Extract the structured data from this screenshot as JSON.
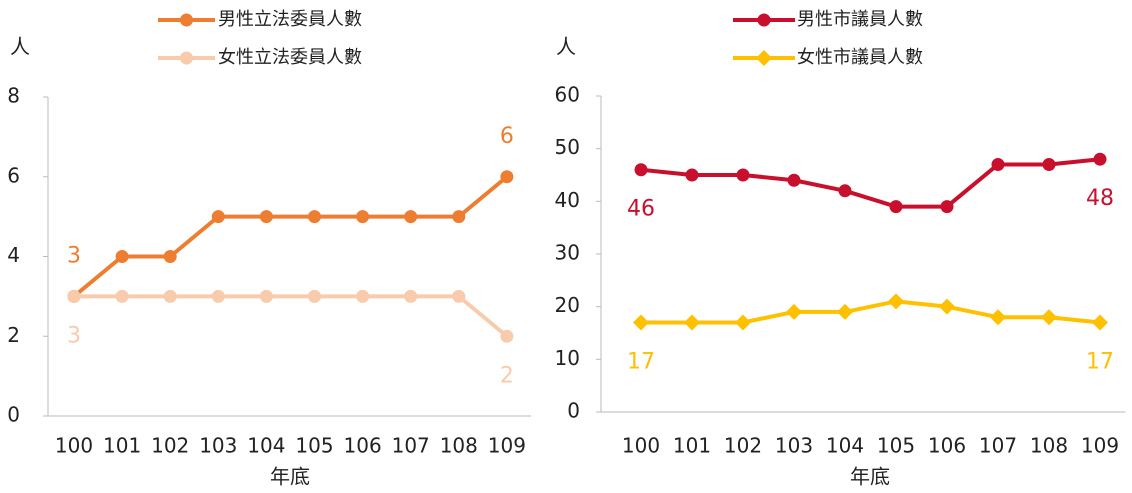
{
  "chart_data": [
    {
      "type": "line",
      "y_label": "人",
      "x_label": "年底",
      "categories": [
        "100",
        "101",
        "102",
        "103",
        "104",
        "105",
        "106",
        "107",
        "108",
        "109"
      ],
      "series": [
        {
          "name": "男性立法委員人數",
          "color": "#ED7D31",
          "marker": "circle",
          "values": [
            3,
            4,
            4,
            5,
            5,
            5,
            5,
            5,
            5,
            6
          ]
        },
        {
          "name": "女性立法委員人數",
          "color": "#F8CBAD",
          "marker": "circle",
          "values": [
            3,
            3,
            3,
            3,
            3,
            3,
            3,
            3,
            3,
            2
          ]
        }
      ],
      "ylim": [
        0,
        8
      ],
      "yticks": [
        0,
        2,
        4,
        6,
        8
      ]
    },
    {
      "type": "line",
      "y_label": "人",
      "x_label": "年底",
      "categories": [
        "100",
        "101",
        "102",
        "103",
        "104",
        "105",
        "106",
        "107",
        "108",
        "109"
      ],
      "series": [
        {
          "name": "男性市議員人數",
          "color": "#C8102E",
          "marker": "circle",
          "values": [
            46,
            45,
            45,
            44,
            42,
            39,
            39,
            47,
            47,
            48
          ]
        },
        {
          "name": "女性市議員人數",
          "color": "#FFC000",
          "marker": "diamond",
          "values": [
            17,
            17,
            17,
            19,
            19,
            21,
            20,
            18,
            18,
            17
          ]
        }
      ],
      "ylim": [
        0,
        60
      ],
      "yticks": [
        0,
        10,
        20,
        30,
        40,
        50,
        60
      ]
    }
  ]
}
